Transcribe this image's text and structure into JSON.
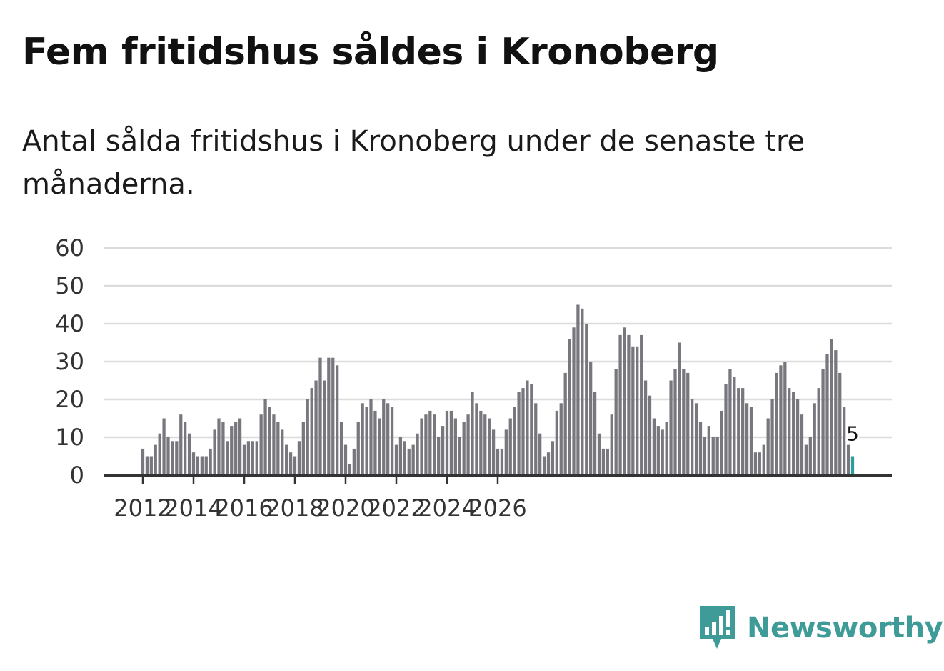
{
  "header": {
    "title": "Fem fritidshus såldes i Kronoberg",
    "subtitle": "Antal sålda fritidshus i Kronoberg under de senaste tre månaderna."
  },
  "brand": {
    "name": "Newsworthy",
    "icon": "newsworthy-logo-icon"
  },
  "colors": {
    "bar": "#78777d",
    "highlight": "#2f9e9a",
    "brand": "#3f9b97"
  },
  "chart_data": {
    "type": "bar",
    "title": "Fem fritidshus såldes i Kronoberg",
    "xlabel": "",
    "ylabel": "",
    "ylim": [
      0,
      60
    ],
    "yticks": [
      0,
      10,
      20,
      30,
      40,
      50,
      60
    ],
    "xticks": [
      "2012",
      "2014",
      "2016",
      "2018",
      "2020",
      "2022",
      "2024",
      "2026"
    ],
    "x_start": "2012-01",
    "x_end": "2026-01",
    "highlight_label": "5",
    "values": [
      7,
      5,
      5,
      8,
      11,
      15,
      10,
      9,
      9,
      16,
      14,
      11,
      6,
      5,
      5,
      5,
      7,
      12,
      15,
      14,
      9,
      13,
      14,
      15,
      8,
      9,
      9,
      9,
      16,
      20,
      18,
      16,
      14,
      12,
      8,
      6,
      5,
      9,
      14,
      20,
      23,
      25,
      31,
      25,
      31,
      31,
      29,
      14,
      8,
      3,
      7,
      14,
      19,
      18,
      20,
      17,
      15,
      20,
      19,
      18,
      8,
      10,
      9,
      7,
      8,
      11,
      15,
      16,
      17,
      16,
      10,
      13,
      17,
      17,
      15,
      10,
      14,
      16,
      22,
      19,
      17,
      16,
      15,
      12,
      7,
      7,
      12,
      15,
      18,
      22,
      23,
      25,
      24,
      19,
      11,
      5,
      6,
      9,
      17,
      19,
      27,
      36,
      39,
      45,
      44,
      40,
      30,
      22,
      11,
      7,
      7,
      16,
      28,
      37,
      39,
      37,
      34,
      34,
      37,
      25,
      21,
      15,
      13,
      12,
      14,
      25,
      28,
      35,
      28,
      27,
      20,
      19,
      14,
      10,
      13,
      10,
      10,
      17,
      24,
      28,
      26,
      23,
      23,
      19,
      18,
      6,
      6,
      8,
      15,
      20,
      27,
      29,
      30,
      23,
      22,
      20,
      16,
      8,
      10,
      19,
      23,
      28,
      32,
      36,
      33,
      27,
      18,
      8,
      5
    ]
  }
}
